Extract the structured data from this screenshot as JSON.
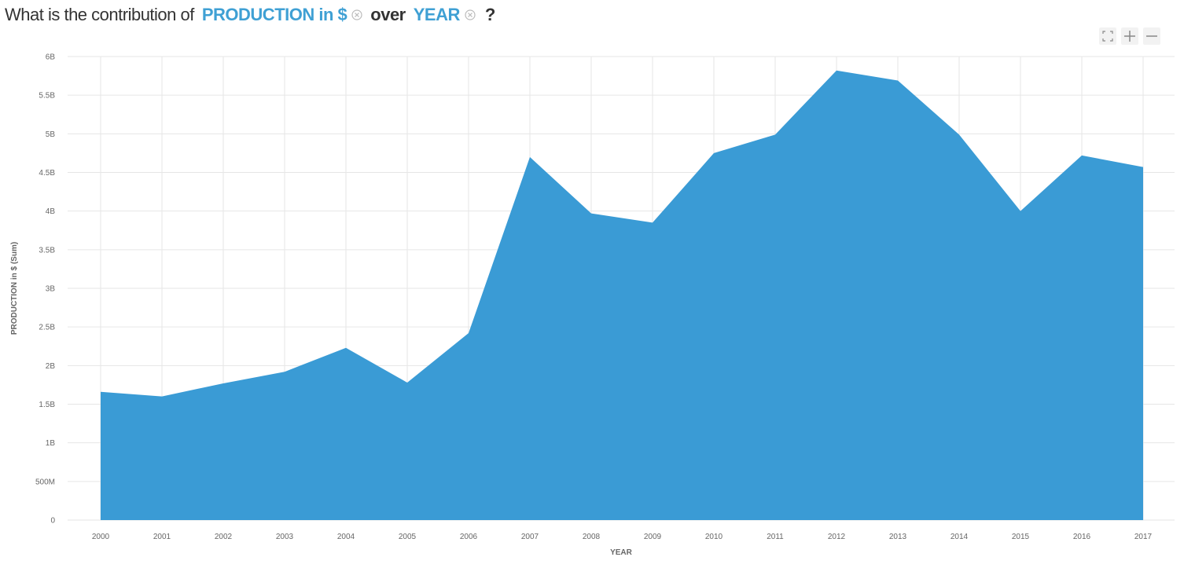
{
  "header": {
    "prefix": "What is the contribution of",
    "measure": "PRODUCTION in $",
    "connector": "over",
    "dimension": "YEAR",
    "suffix": "?",
    "accent_color": "#3fa0d4",
    "text_color": "#333333"
  },
  "controls": {
    "icons": [
      "expand-icon",
      "plus-icon",
      "minus-icon"
    ]
  },
  "chart_data": {
    "type": "area",
    "x": [
      "2000",
      "2001",
      "2002",
      "2003",
      "2004",
      "2005",
      "2006",
      "2007",
      "2008",
      "2009",
      "2010",
      "2011",
      "2012",
      "2013",
      "2014",
      "2015",
      "2016",
      "2017"
    ],
    "series": [
      {
        "values": [
          1660000000.0,
          1600000000.0,
          1770000000.0,
          1920000000.0,
          2230000000.0,
          1780000000.0,
          2420000000.0,
          4700000000.0,
          3970000000.0,
          3850000000.0,
          4750000000.0,
          4990000000.0,
          5820000000.0,
          5690000000.0,
          4990000000.0,
          4000000000.0,
          4720000000.0,
          4570000000.0
        ],
        "color": "#3a9bd5"
      }
    ],
    "xlabel": "YEAR",
    "ylabel": "PRODUCTION in $ (Sum)",
    "ylim": [
      0,
      6000000000
    ],
    "yticks": [
      0,
      500000000,
      1000000000,
      1500000000,
      2000000000,
      2500000000,
      3000000000,
      3500000000,
      4000000000,
      4500000000,
      5000000000,
      5500000000,
      6000000000
    ],
    "ytick_labels": [
      "0",
      "500M",
      "1B",
      "1.5B",
      "2B",
      "2.5B",
      "3B",
      "3.5B",
      "4B",
      "4.5B",
      "5B",
      "5.5B",
      "6B"
    ],
    "grid": true,
    "legend": "none"
  }
}
